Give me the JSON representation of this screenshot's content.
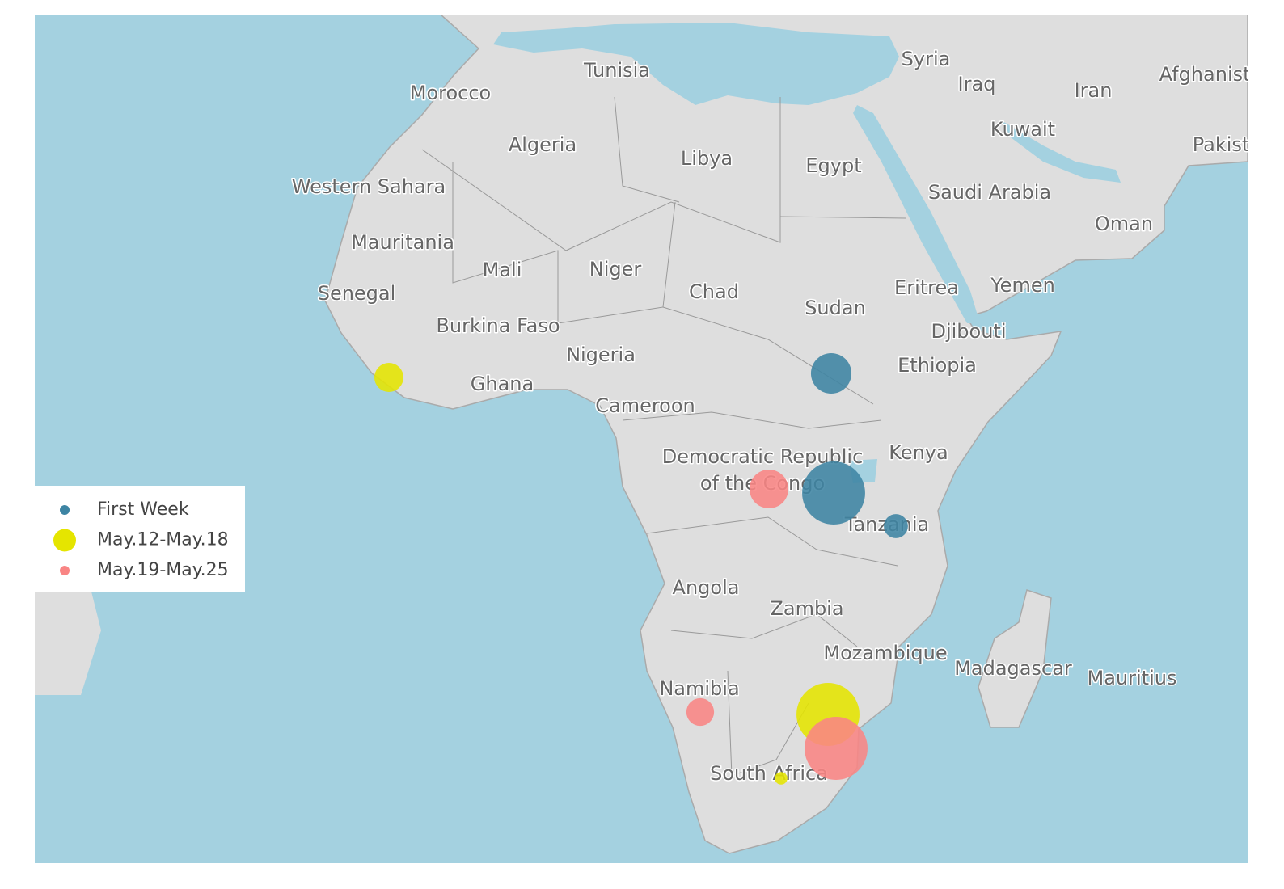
{
  "map": {
    "labels": [
      "Tunisia",
      "Syria",
      "Iraq",
      "Iran",
      "Afghanistan",
      "Morocco",
      "Kuwait",
      "Pakistan",
      "Algeria",
      "Libya",
      "Egypt",
      "Western Sahara",
      "Saudi Arabia",
      "Oman",
      "Mauritania",
      "Mali",
      "Niger",
      "Chad",
      "Senegal",
      "Eritrea",
      "Yemen",
      "Sudan",
      "Burkina Faso",
      "Djibouti",
      "Nigeria",
      "Ethiopia",
      "Ghana",
      "Cameroon",
      "Kenya",
      "Democratic Republic",
      "of the Congo",
      "Tanzania",
      "Angola",
      "Zambia",
      "Mozambique",
      "Madagascar",
      "Mauritius",
      "Namibia",
      "South Africa"
    ]
  },
  "chart_data": {
    "type": "bubble-map",
    "series": [
      {
        "name": "First Week",
        "color": "#3d84a3",
        "values": [
          62,
          150,
          22
        ]
      },
      {
        "name": "May.12-May.18",
        "color": "#e5e500",
        "values": [
          32,
          150,
          6
        ]
      },
      {
        "name": "May.19-May.25",
        "color": "#f98584",
        "values": [
          57,
          29,
          150
        ]
      }
    ]
  }
}
